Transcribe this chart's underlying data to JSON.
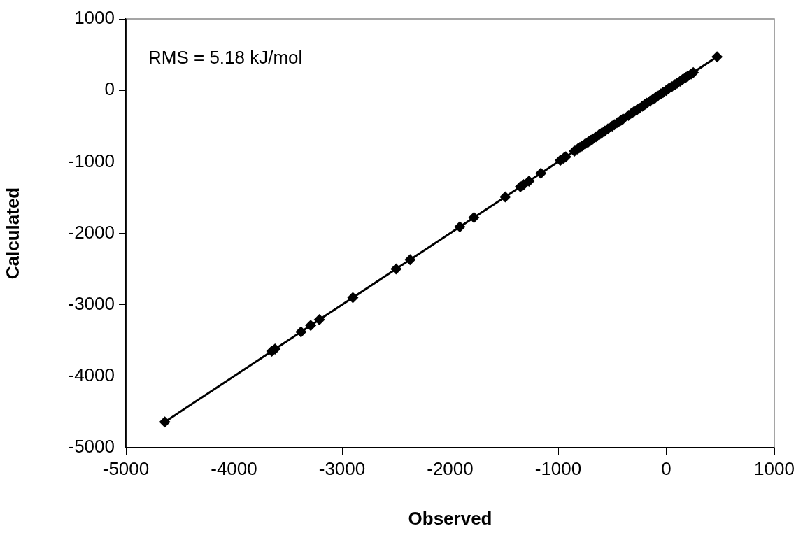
{
  "chart_data": {
    "type": "line",
    "xlabel": "Observed",
    "ylabel": "Calculated",
    "annotations": [
      "RMS = 5.18 kJ/mol"
    ],
    "x": [
      -4640,
      -3650,
      -3620,
      -3380,
      -3290,
      -3210,
      -2900,
      -2500,
      -2370,
      -1910,
      -1780,
      -1490,
      -1350,
      -1320,
      -1270,
      -1160,
      -980,
      -950,
      -930,
      -850,
      -820,
      -800,
      -780,
      -750,
      -720,
      -700,
      -680,
      -650,
      -620,
      -600,
      -570,
      -540,
      -500,
      -480,
      -450,
      -420,
      -400,
      -350,
      -320,
      -300,
      -270,
      -250,
      -220,
      -200,
      -180,
      -150,
      -120,
      -100,
      -80,
      -50,
      -30,
      0,
      20,
      50,
      80,
      100,
      130,
      150,
      180,
      200,
      230,
      250,
      470
    ],
    "series": [
      {
        "color": "#000000",
        "values": [
          -4640,
          -3650,
          -3620,
          -3380,
          -3290,
          -3210,
          -2900,
          -2500,
          -2370,
          -1910,
          -1780,
          -1490,
          -1350,
          -1320,
          -1270,
          -1160,
          -980,
          -950,
          -930,
          -850,
          -820,
          -800,
          -780,
          -750,
          -720,
          -700,
          -680,
          -650,
          -620,
          -600,
          -570,
          -540,
          -500,
          -480,
          -450,
          -420,
          -400,
          -350,
          -320,
          -300,
          -270,
          -250,
          -220,
          -200,
          -180,
          -150,
          -120,
          -100,
          -80,
          -50,
          -30,
          0,
          20,
          50,
          80,
          100,
          130,
          150,
          180,
          200,
          230,
          250,
          470
        ]
      }
    ],
    "xlim": [
      -5000,
      1000
    ],
    "xticks": [
      -5000,
      -4000,
      -3000,
      -2000,
      -1000,
      0,
      1000
    ],
    "ylim": [
      -5000,
      1000
    ],
    "yticks": [
      -5000,
      -4000,
      -3000,
      -2000,
      -1000,
      0,
      1000
    ],
    "grid": false,
    "legend": false,
    "marker": "diamond",
    "line_style": "solid"
  }
}
